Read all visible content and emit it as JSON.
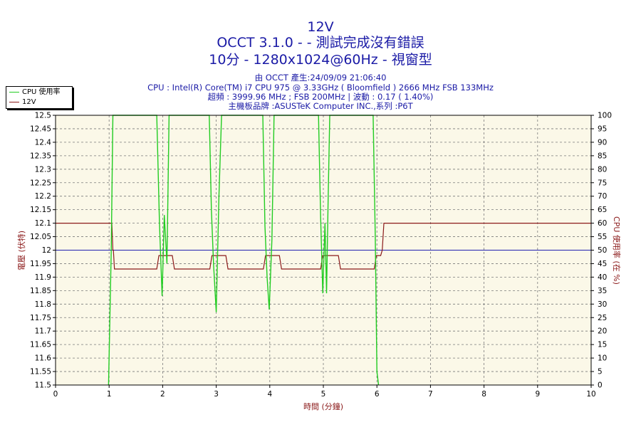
{
  "header": {
    "title": "12V",
    "line2": "OCCT 3.1.0 -  - 測試完成沒有錯誤",
    "line3": "10分 - 1280x1024@60Hz - 視窗型"
  },
  "info": {
    "line1": "由 OCCT 產生:24/09/09 21:06:40",
    "line2": "CPU : Intel(R) Core(TM) i7 CPU 975 @ 3.33GHz ( Bloomfield ) 2666 MHz FSB 133MHz",
    "line3": "超頻 : 3999.96 MHz ; FSB 200MHz | 波動 : 0.17 ( 1.40%)",
    "line4": "主機板品牌 :ASUSTeK Computer INC.,系列 :P6T"
  },
  "legend": {
    "entries": [
      {
        "label": "CPU 使用率",
        "color": "#22cc22"
      },
      {
        "label": "12V",
        "color": "#8b1a1a"
      }
    ],
    "placement": "top-left"
  },
  "colors": {
    "plot_bg": "#fbf8e8",
    "grid": "#7a7a7a",
    "voltage": "#8b1a1a",
    "cpu": "#22cc22",
    "reference": "#2020b0",
    "axis_text": "#000000"
  },
  "chart_data": {
    "type": "line",
    "title": "12V",
    "xlabel": "時間 (分鐘)",
    "ylabel_left": "電壓 (伏特)",
    "ylabel_right": "CPU 使用率 (在 %)",
    "xlim": [
      0,
      10
    ],
    "ylim_left": [
      11.5,
      12.5
    ],
    "ylim_right": [
      0,
      100
    ],
    "grid": true,
    "x_ticks": [
      "0",
      "1",
      "2",
      "3",
      "4",
      "5",
      "6",
      "7",
      "8",
      "9",
      "10"
    ],
    "y_left_ticks": [
      "11.5",
      "11.55",
      "11.6",
      "11.65",
      "11.7",
      "11.75",
      "11.8",
      "11.85",
      "11.9",
      "11.95",
      "12",
      "12.05",
      "12.1",
      "12.15",
      "12.2",
      "12.25",
      "12.3",
      "12.35",
      "12.4",
      "12.45",
      "12.5"
    ],
    "y_right_ticks": [
      "0",
      "5",
      "10",
      "15",
      "20",
      "25",
      "30",
      "35",
      "40",
      "45",
      "50",
      "55",
      "60",
      "65",
      "70",
      "75",
      "80",
      "85",
      "90",
      "95",
      "100"
    ],
    "reference_line": {
      "axis": "left",
      "value": 12.0
    },
    "series": [
      {
        "name": "12V",
        "axis": "left",
        "x": [
          0,
          1.05,
          1.07,
          1.08,
          1.1,
          1.12,
          1.89,
          1.93,
          2.18,
          2.22,
          2.88,
          2.92,
          3.18,
          3.22,
          3.88,
          3.92,
          4.18,
          4.22,
          4.95,
          4.99,
          5.28,
          5.32,
          5.95,
          5.99,
          6.07,
          6.1,
          6.13,
          10
        ],
        "y": [
          12.1,
          12.1,
          12.0,
          12.0,
          11.93,
          11.93,
          11.93,
          11.98,
          11.98,
          11.93,
          11.93,
          11.98,
          11.98,
          11.93,
          11.93,
          11.98,
          11.98,
          11.93,
          11.93,
          11.98,
          11.98,
          11.93,
          11.93,
          11.98,
          11.98,
          12.0,
          12.1,
          12.1
        ]
      },
      {
        "name": "CPU 使用率",
        "axis": "right",
        "x": [
          0.99,
          1.04,
          1.07,
          1.1,
          1.89,
          1.94,
          1.99,
          2.03,
          2.08,
          2.12,
          2.87,
          2.91,
          2.95,
          3.0,
          3.05,
          3.1,
          3.87,
          3.91,
          3.95,
          3.99,
          4.04,
          4.08,
          4.91,
          4.95,
          4.99,
          5.03,
          5.06,
          5.09,
          5.12,
          5.93,
          5.97,
          6.0,
          6.03
        ],
        "y": [
          0,
          50,
          100,
          100,
          100,
          60,
          33,
          63,
          45,
          100,
          100,
          65,
          45,
          27,
          70,
          100,
          100,
          59,
          40,
          28,
          54,
          100,
          100,
          62,
          34,
          60,
          34,
          70,
          100,
          100,
          55,
          5,
          0
        ]
      }
    ]
  }
}
